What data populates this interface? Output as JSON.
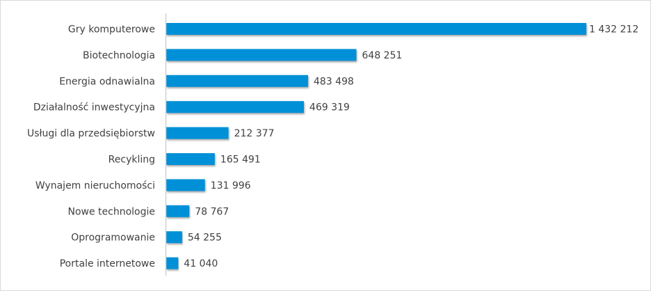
{
  "chart_data": {
    "type": "bar",
    "orientation": "horizontal",
    "title": "",
    "xlabel": "",
    "ylabel": "",
    "categories": [
      "Gry komputerowe",
      "Biotechnologia",
      "Energia odnawialna",
      "Działalność inwestycyjna",
      "Usługi dla przedsiębiorstw",
      "Recykling",
      "Wynajem nieruchomości",
      "Nowe technologie",
      "Oprogramowanie",
      "Portale internetowe"
    ],
    "values": [
      1432212,
      648251,
      483498,
      469319,
      212377,
      165491,
      131996,
      78767,
      54255,
      41040
    ],
    "data_labels": [
      "1 432 212",
      "648 251",
      "483 498",
      "469 319",
      "212 377",
      "165 491",
      "131 996",
      "78 767",
      "54 255",
      "41 040"
    ],
    "xlim": [
      0,
      1432212
    ],
    "grid": false,
    "legend": "none",
    "bar_color": "#0090d7",
    "axis_color": "#d0d0d0"
  }
}
